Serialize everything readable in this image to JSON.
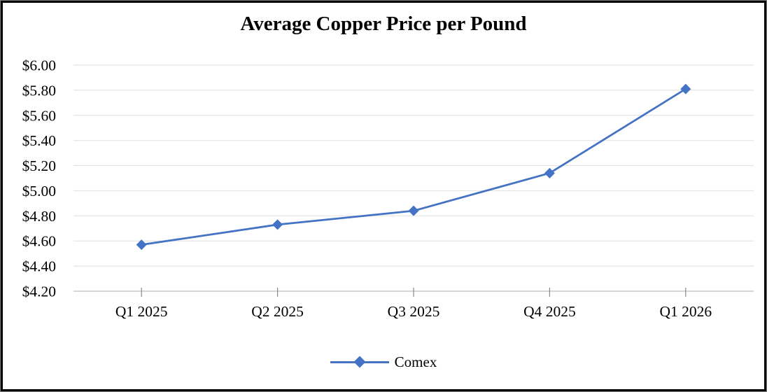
{
  "title": "Average Copper Price per Pound",
  "legend": {
    "label": "Comex"
  },
  "colors": {
    "series": "#4472C4",
    "gridline": "#E4E4E4",
    "axis_line": "#BFBFBF",
    "tick_mark": "#898989",
    "text": "#000000",
    "frame_border": "#000000"
  },
  "chart_data": {
    "type": "line",
    "title": "Average Copper Price per Pound",
    "categories": [
      "Q1 2025",
      "Q2 2025",
      "Q3 2025",
      "Q4 2025",
      "Q1 2026"
    ],
    "series": [
      {
        "name": "Comex",
        "values": [
          4.57,
          4.73,
          4.84,
          5.14,
          5.81
        ]
      }
    ],
    "xlabel": "",
    "ylabel": "",
    "ylim": [
      4.2,
      6.0
    ],
    "ytick_step": 0.2,
    "ytick_labels": [
      "$4.20",
      "$4.40",
      "$4.60",
      "$4.80",
      "$5.00",
      "$5.20",
      "$5.40",
      "$5.60",
      "$5.80",
      "$6.00"
    ],
    "marker": "diamond",
    "grid": true,
    "legend_position": "bottom"
  }
}
